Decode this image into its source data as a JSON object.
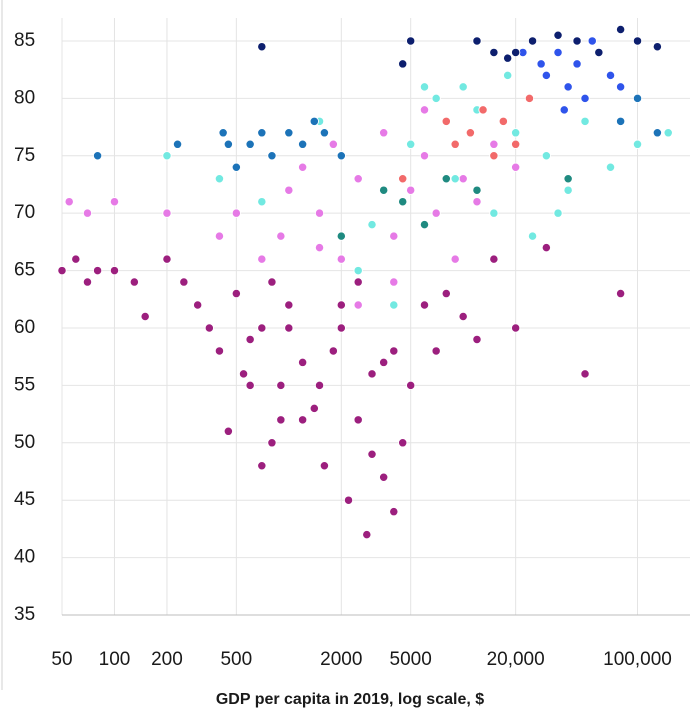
{
  "chart_data": {
    "type": "scatter",
    "x_label": "GDP per capita in 2019, log scale, $",
    "xscale": "log",
    "xlim": [
      50,
      200000
    ],
    "ylim": [
      35,
      87
    ],
    "xticks": [
      50,
      100,
      200,
      500,
      2000,
      5000,
      {
        "value": 20000,
        "label": "20,000"
      },
      {
        "value": 100000,
        "label": "100,000"
      }
    ],
    "yticks": [
      35,
      40,
      45,
      50,
      55,
      60,
      65,
      70,
      75,
      80,
      85
    ],
    "grid": true,
    "series": [
      {
        "color": "#9c1f7e",
        "x": [
          50,
          60,
          70,
          80,
          100,
          130,
          150,
          200,
          250,
          300,
          350,
          400,
          450,
          500,
          550,
          600,
          700,
          800,
          900,
          1000,
          1200,
          1400,
          1600,
          1800,
          2000,
          2200,
          2500,
          2800,
          3000,
          3500,
          4000,
          4500,
          5000,
          6000,
          7000,
          8000,
          10000,
          12000,
          15000,
          20000,
          30000,
          50000,
          80000,
          1000,
          1500,
          2500,
          3000,
          3500,
          600,
          800,
          1200,
          2000,
          4000,
          700,
          900
        ],
        "values": [
          65,
          66,
          64,
          65,
          65,
          64,
          61,
          66,
          64,
          62,
          60,
          58,
          51,
          63,
          56,
          59,
          60,
          50,
          55,
          62,
          57,
          53,
          48,
          58,
          60,
          45,
          52,
          42,
          56,
          47,
          58,
          50,
          55,
          62,
          58,
          63,
          61,
          59,
          66,
          60,
          67,
          56,
          63,
          60,
          55,
          64,
          49,
          57,
          55,
          64,
          52,
          62,
          44,
          48,
          52
        ]
      },
      {
        "color": "#e67ae6",
        "x": [
          55,
          70,
          100,
          200,
          400,
          500,
          700,
          900,
          1000,
          1200,
          1500,
          1800,
          2000,
          2500,
          3000,
          3500,
          4000,
          5000,
          6000,
          7000,
          8000,
          10000,
          12000,
          15000,
          20000,
          1500,
          2500,
          4000,
          6000,
          9000
        ],
        "values": [
          71,
          70,
          71,
          70,
          68,
          70,
          66,
          68,
          72,
          74,
          70,
          76,
          66,
          73,
          69,
          77,
          64,
          72,
          75,
          70,
          78,
          73,
          71,
          76,
          74,
          67,
          62,
          68,
          79,
          66
        ]
      },
      {
        "color": "#72e9e1",
        "x": [
          200,
          400,
          700,
          1500,
          2500,
          4000,
          5000,
          7000,
          9000,
          12000,
          15000,
          20000,
          25000,
          30000,
          40000,
          50000,
          70000,
          100000,
          150000,
          6000,
          10000,
          18000,
          35000,
          3000
        ],
        "values": [
          75,
          73,
          71,
          78,
          65,
          62,
          76,
          80,
          73,
          79,
          70,
          77,
          68,
          75,
          72,
          78,
          74,
          76,
          77,
          81,
          81,
          82,
          70,
          69
        ]
      },
      {
        "color": "#1c73b8",
        "x": [
          80,
          230,
          420,
          450,
          500,
          600,
          700,
          800,
          1000,
          1200,
          1400,
          1600,
          2000,
          100000,
          130000,
          80000
        ],
        "values": [
          75,
          76,
          77,
          76,
          74,
          76,
          77,
          75,
          77,
          76,
          78,
          77,
          75,
          80,
          77,
          78
        ]
      },
      {
        "color": "#f26a6a",
        "x": [
          8000,
          9000,
          11000,
          13000,
          15000,
          17000,
          20000,
          24000,
          4500
        ],
        "values": [
          78,
          76,
          77,
          79,
          75,
          78,
          76,
          80,
          73
        ]
      },
      {
        "color": "#1f8a80",
        "x": [
          3500,
          4500,
          6000,
          8000,
          12000,
          40000,
          2000
        ],
        "values": [
          72,
          71,
          69,
          73,
          72,
          73,
          68
        ]
      },
      {
        "color": "#2f54eb",
        "x": [
          22000,
          25000,
          30000,
          35000,
          40000,
          45000,
          50000,
          60000,
          70000,
          80000,
          28000,
          38000,
          55000
        ],
        "values": [
          84,
          85,
          82,
          84,
          81,
          83,
          80,
          84,
          82,
          81,
          83,
          79,
          85
        ]
      },
      {
        "color": "#0d1f6e",
        "x": [
          700,
          4500,
          5000,
          12000,
          15000,
          18000,
          20000,
          25000,
          35000,
          45000,
          60000,
          80000,
          100000,
          130000
        ],
        "values": [
          84.5,
          83,
          85,
          85,
          84,
          83.5,
          84,
          85,
          85.5,
          85,
          84,
          86,
          85,
          84.5
        ]
      }
    ]
  }
}
